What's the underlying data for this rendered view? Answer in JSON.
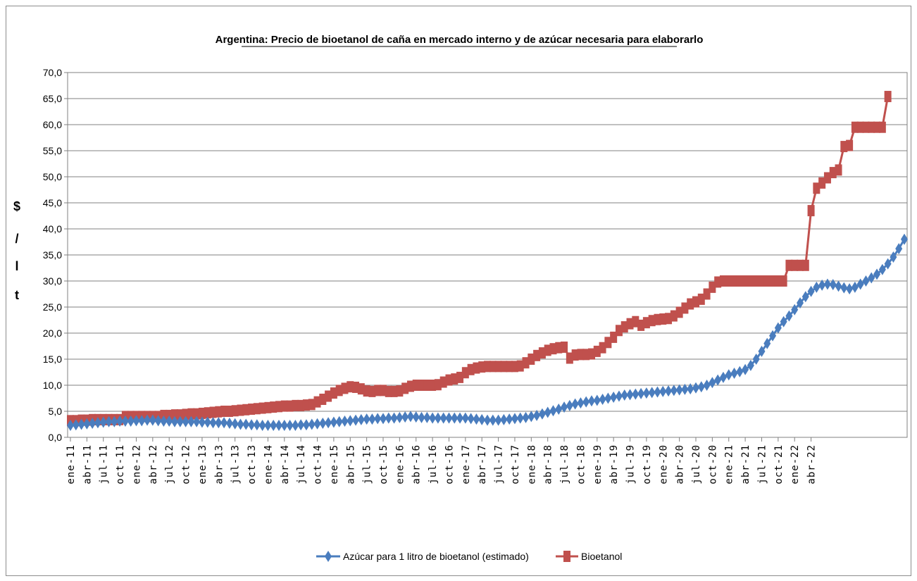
{
  "chart_data": {
    "type": "line",
    "title": "Argentina: Precio de bioetanol de caña en mercado interno y de azúcar necesaria para elaborarlo",
    "ylabel_chars": [
      "$",
      "/",
      "l",
      "t"
    ],
    "ylim": [
      0,
      70
    ],
    "yticks": [
      "0,0",
      "5,0",
      "10,0",
      "15,0",
      "20,0",
      "25,0",
      "30,0",
      "35,0",
      "40,0",
      "45,0",
      "50,0",
      "55,0",
      "60,0",
      "65,0",
      "70,0"
    ],
    "xtick_labels": [
      "ene-11",
      "abr-11",
      "jul-11",
      "oct-11",
      "ene-12",
      "abr-12",
      "jul-12",
      "oct-12",
      "ene-13",
      "abr-13",
      "jul-13",
      "oct-13",
      "ene-14",
      "abr-14",
      "jul-14",
      "oct-14",
      "ene-15",
      "abr-15",
      "jul-15",
      "oct-15",
      "ene-16",
      "abr-16",
      "jul-16",
      "oct-16",
      "ene-17",
      "abr-17",
      "jul-17",
      "oct-17",
      "ene-18",
      "abr-18",
      "jul-18",
      "oct-18",
      "ene-19",
      "abr-19",
      "jul-19",
      "oct-19",
      "ene-20",
      "abr-20",
      "jul-20",
      "oct-20",
      "ene-21",
      "abr-21",
      "jul-21",
      "oct-21",
      "ene-22",
      "abr-22"
    ],
    "grid": true,
    "legend_position": "bottom",
    "series": [
      {
        "name": "Azúcar para 1 litro de bioetanol (estimado)",
        "color": "#4a7dbe",
        "marker": "diamond",
        "values": [
          2.3,
          2.4,
          2.5,
          2.6,
          2.7,
          2.8,
          2.9,
          3.0,
          3.0,
          3.1,
          3.1,
          3.1,
          3.2,
          3.2,
          3.3,
          3.3,
          3.2,
          3.1,
          3.1,
          3.0,
          3.0,
          3.0,
          3.0,
          3.0,
          2.9,
          2.9,
          2.8,
          2.8,
          2.8,
          2.7,
          2.6,
          2.5,
          2.5,
          2.4,
          2.4,
          2.3,
          2.3,
          2.3,
          2.3,
          2.3,
          2.3,
          2.3,
          2.4,
          2.4,
          2.5,
          2.6,
          2.7,
          2.8,
          2.9,
          3.0,
          3.1,
          3.2,
          3.3,
          3.4,
          3.5,
          3.5,
          3.6,
          3.6,
          3.7,
          3.7,
          3.8,
          3.9,
          4.0,
          3.9,
          3.8,
          3.8,
          3.7,
          3.7,
          3.7,
          3.7,
          3.7,
          3.7,
          3.7,
          3.6,
          3.5,
          3.4,
          3.3,
          3.3,
          3.3,
          3.4,
          3.5,
          3.6,
          3.7,
          3.8,
          4.0,
          4.2,
          4.5,
          4.8,
          5.1,
          5.4,
          5.8,
          6.1,
          6.4,
          6.6,
          6.8,
          7.0,
          7.1,
          7.3,
          7.5,
          7.7,
          7.9,
          8.1,
          8.2,
          8.3,
          8.4,
          8.5,
          8.6,
          8.7,
          8.8,
          8.9,
          9.0,
          9.1,
          9.2,
          9.3,
          9.5,
          9.7,
          10.0,
          10.5,
          11.0,
          11.5,
          12.0,
          12.3,
          12.6,
          13.0,
          13.8,
          15.0,
          16.5,
          18.0,
          19.5,
          21.0,
          22.2,
          23.3,
          24.5,
          25.8,
          27.0,
          28.0,
          28.8,
          29.2,
          29.4,
          29.3,
          29.0,
          28.7,
          28.5,
          28.8,
          29.4,
          30.0,
          30.6,
          31.3,
          32.2,
          33.3,
          34.6,
          36.2,
          38.0
        ]
      },
      {
        "name": "Bioetanol",
        "color": "#c0504d",
        "marker": "square",
        "values": [
          3.2,
          3.2,
          3.3,
          3.3,
          3.4,
          3.4,
          3.4,
          3.4,
          3.4,
          3.4,
          4.0,
          4.0,
          4.0,
          4.0,
          4.0,
          4.0,
          4.0,
          4.2,
          4.2,
          4.3,
          4.3,
          4.4,
          4.5,
          4.5,
          4.6,
          4.7,
          4.8,
          4.9,
          5.0,
          5.0,
          5.1,
          5.2,
          5.3,
          5.4,
          5.5,
          5.6,
          5.7,
          5.8,
          5.9,
          6.0,
          6.0,
          6.1,
          6.1,
          6.2,
          6.3,
          6.8,
          7.3,
          7.9,
          8.5,
          9.0,
          9.4,
          9.7,
          9.6,
          9.3,
          8.9,
          8.8,
          9.0,
          9.0,
          8.8,
          8.8,
          8.9,
          9.4,
          9.8,
          10.0,
          10.0,
          10.0,
          10.0,
          10.1,
          10.6,
          11.0,
          11.2,
          11.5,
          12.4,
          13.0,
          13.3,
          13.5,
          13.6,
          13.6,
          13.6,
          13.6,
          13.6,
          13.6,
          13.7,
          14.3,
          15.0,
          15.7,
          16.2,
          16.7,
          17.0,
          17.2,
          17.3,
          15.2,
          15.8,
          15.9,
          15.9,
          16.0,
          16.5,
          17.2,
          18.2,
          19.2,
          20.5,
          21.2,
          21.8,
          22.2,
          21.5,
          22.0,
          22.4,
          22.6,
          22.7,
          22.8,
          23.3,
          24.0,
          24.8,
          25.6,
          26.0,
          26.5,
          27.5,
          28.8,
          29.8,
          30.0,
          30.0,
          30.0,
          30.0,
          30.0,
          30.0,
          30.0,
          30.0,
          30.0,
          30.0,
          30.0,
          30.0,
          33.0,
          33.0,
          33.0,
          33.0,
          43.5,
          47.8,
          48.8,
          49.8,
          50.8,
          51.3,
          55.8,
          56.0,
          59.5,
          59.5,
          59.5,
          59.5,
          59.5,
          59.5,
          65.4
        ]
      }
    ]
  }
}
